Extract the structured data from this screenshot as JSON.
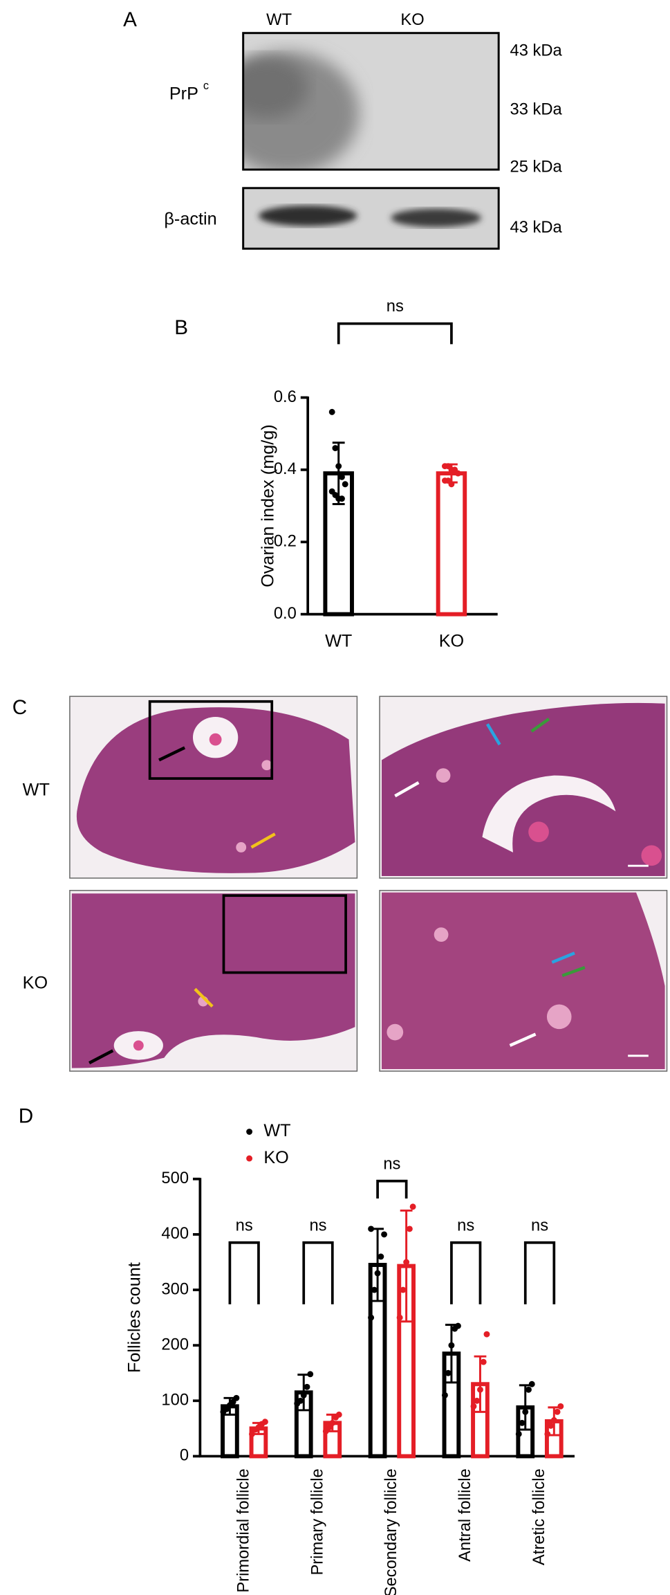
{
  "panel_a": {
    "label": "A",
    "lanes": [
      "WT",
      "KO"
    ],
    "protein": "PrP",
    "protein_sup": "c",
    "markers": [
      "43 kDa",
      "33 kDa",
      "25 kDa"
    ],
    "loading_control": "β-actin",
    "loading_marker": "43 kDa"
  },
  "panel_c": {
    "label": "C",
    "rows": [
      "WT",
      "KO"
    ]
  },
  "chart_data": [
    {
      "type": "bar",
      "label": "B",
      "categories": [
        "WT",
        "KO"
      ],
      "values": [
        0.39,
        0.39
      ],
      "errors": [
        0.085,
        0.025
      ],
      "colors": [
        "#000000",
        "#e41e26"
      ],
      "points": [
        [
          0.56,
          0.46,
          0.41,
          0.38,
          0.36,
          0.34,
          0.33,
          0.32,
          0.32
        ],
        [
          0.41,
          0.41,
          0.4,
          0.4,
          0.39,
          0.37,
          0.37,
          0.36
        ]
      ],
      "ylabel": "Ovarian index (mg/g)",
      "ylim": [
        0,
        0.6
      ],
      "yticks": [
        {
          "value": 0,
          "label": "0.0"
        },
        0.2,
        0.4,
        0.6
      ],
      "annotation": "ns"
    },
    {
      "type": "grouped_bar",
      "label": "D",
      "categories": [
        "Primordial follicle",
        "Primary follicle",
        "Secondary follicle",
        "Antral follicle",
        "Atretic follicle"
      ],
      "series": [
        {
          "name": "WT",
          "color": "#000000",
          "values": [
            90,
            115,
            345,
            185,
            88
          ],
          "errors": [
            15,
            32,
            65,
            52,
            40
          ],
          "points": [
            [
              80,
              85,
              92,
              98,
              105
            ],
            [
              95,
              100,
              110,
              125,
              148
            ],
            [
              250,
              300,
              330,
              360,
              400,
              410
            ],
            [
              110,
              150,
              200,
              230,
              235
            ],
            [
              40,
              60,
              80,
              120,
              130
            ]
          ]
        },
        {
          "name": "KO",
          "color": "#e41e26",
          "values": [
            50,
            60,
            343,
            130,
            63
          ],
          "errors": [
            10,
            15,
            100,
            50,
            25
          ],
          "points": [
            [
              40,
              48,
              52,
              58,
              62
            ],
            [
              45,
              52,
              60,
              70,
              75
            ],
            [
              250,
              300,
              350,
              410,
              450
            ],
            [
              90,
              100,
              120,
              170,
              220
            ],
            [
              40,
              55,
              65,
              80,
              90
            ]
          ]
        }
      ],
      "ylabel": "Follicles count",
      "ylim": [
        0,
        500
      ],
      "yticks": [
        0,
        100,
        200,
        300,
        400,
        500
      ],
      "annotations": [
        "ns",
        "ns",
        "ns",
        "ns",
        "ns"
      ]
    }
  ]
}
